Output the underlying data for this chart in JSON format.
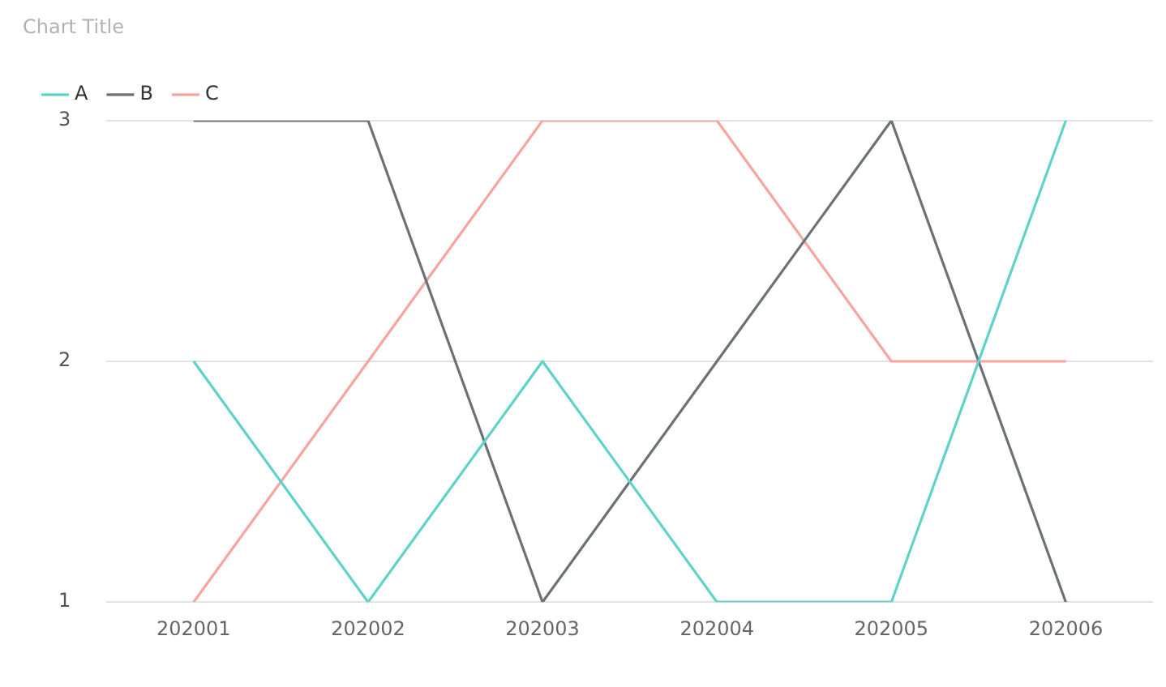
{
  "chart_data": {
    "type": "line",
    "title": "Chart Title",
    "categories": [
      "202001",
      "202002",
      "202003",
      "202004",
      "202005",
      "202006"
    ],
    "series": [
      {
        "name": "A",
        "color": "#5fd3c8",
        "values": [
          2,
          1,
          2,
          1,
          1,
          3
        ]
      },
      {
        "name": "B",
        "color": "#6b7275",
        "values": [
          3,
          3,
          1,
          2,
          3,
          1
        ]
      },
      {
        "name": "C",
        "color": "#f7a5a0",
        "values": [
          1,
          2,
          3,
          3,
          2,
          2
        ]
      }
    ],
    "ylim": [
      1,
      3
    ],
    "yticks": [
      1,
      2,
      3
    ],
    "grid": "y",
    "legend": "top left",
    "marker": "none",
    "line_style": "solid"
  }
}
